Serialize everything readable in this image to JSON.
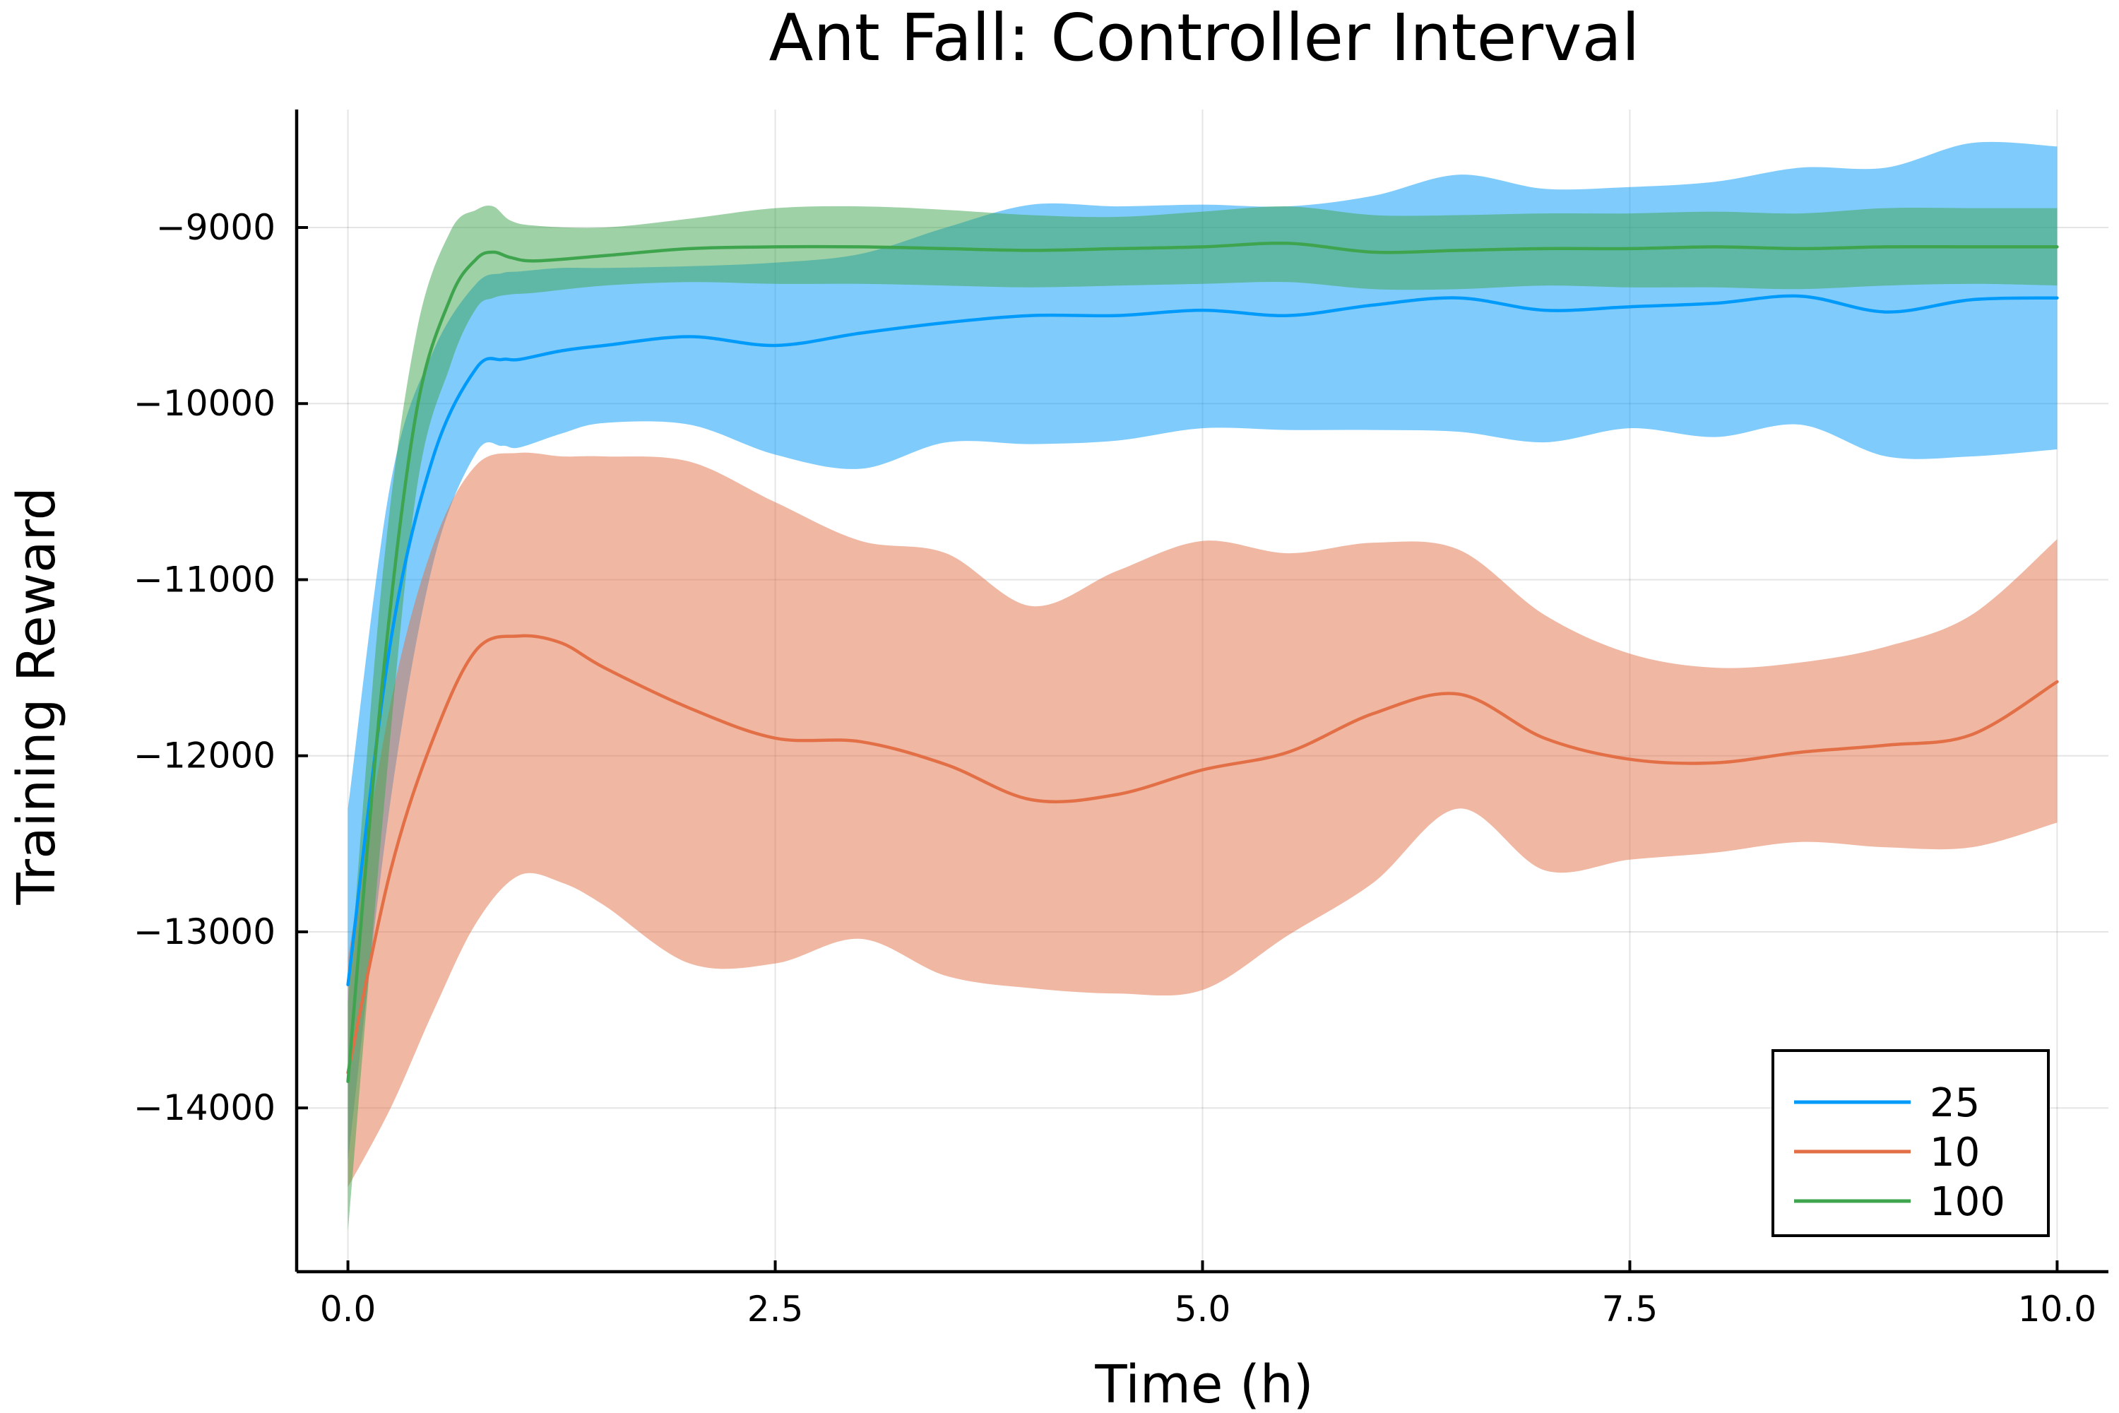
{
  "chart_data": {
    "type": "line",
    "title": "Ant Fall: Controller Interval",
    "xlabel": "Time (h)",
    "ylabel": "Training Reward",
    "xlim": [
      -0.3,
      10.3
    ],
    "ylim": [
      -14930,
      -8330
    ],
    "xticks": [
      0.0,
      2.5,
      5.0,
      7.5,
      10.0
    ],
    "xtick_labels": [
      "0.0",
      "2.5",
      "5.0",
      "7.5",
      "10.0"
    ],
    "yticks": [
      -9000,
      -10000,
      -11000,
      -12000,
      -13000,
      -14000
    ],
    "ytick_labels": [
      "−9000",
      "−10000",
      "−11000",
      "−12000",
      "−13000",
      "−14000"
    ],
    "grid": true,
    "legend_position": "bottom-right",
    "band_opacity": 0.5,
    "series": [
      {
        "name": "25",
        "color": "#009AFA",
        "x": [
          0,
          0.25,
          0.5,
          0.75,
          0.9,
          1.0,
          1.25,
          1.5,
          2.0,
          2.5,
          3.0,
          3.5,
          4.0,
          4.5,
          5.0,
          5.5,
          6.0,
          6.5,
          7.0,
          7.5,
          8.0,
          8.5,
          9.0,
          9.5,
          10.0
        ],
        "mean": [
          -13300,
          -11350,
          -10300,
          -9800,
          -9750,
          -9750,
          -9700,
          -9670,
          -9620,
          -9670,
          -9600,
          -9540,
          -9500,
          -9500,
          -9470,
          -9500,
          -9440,
          -9400,
          -9470,
          -9450,
          -9430,
          -9390,
          -9480,
          -9410,
          -9400
        ],
        "upper": [
          -12300,
          -10450,
          -9700,
          -9320,
          -9260,
          -9250,
          -9230,
          -9230,
          -9220,
          -9200,
          -9150,
          -9000,
          -8870,
          -8880,
          -8870,
          -8880,
          -8820,
          -8700,
          -8780,
          -8770,
          -8740,
          -8660,
          -8660,
          -8520,
          -8540
        ],
        "lower": [
          -14300,
          -12250,
          -10900,
          -10280,
          -10240,
          -10250,
          -10170,
          -10110,
          -10120,
          -10290,
          -10370,
          -10220,
          -10230,
          -10210,
          -10140,
          -10150,
          -10150,
          -10160,
          -10220,
          -10140,
          -10190,
          -10120,
          -10300,
          -10300,
          -10260
        ]
      },
      {
        "name": "10",
        "color": "#E26F46",
        "x": [
          0,
          0.25,
          0.5,
          0.75,
          1.0,
          1.25,
          1.5,
          2.0,
          2.5,
          3.0,
          3.5,
          4.0,
          4.5,
          5.0,
          5.5,
          6.0,
          6.5,
          7.0,
          7.5,
          8.0,
          8.5,
          9.0,
          9.5,
          10.0
        ],
        "mean": [
          -13800,
          -12650,
          -11900,
          -11400,
          -11320,
          -11360,
          -11500,
          -11730,
          -11900,
          -11920,
          -12050,
          -12250,
          -12220,
          -12080,
          -11980,
          -11760,
          -11650,
          -11900,
          -12020,
          -12040,
          -11980,
          -11940,
          -11880,
          -11580
        ],
        "upper": [
          -13150,
          -11700,
          -10800,
          -10350,
          -10280,
          -10300,
          -10300,
          -10330,
          -10560,
          -10780,
          -10850,
          -11150,
          -10950,
          -10780,
          -10850,
          -10790,
          -10830,
          -11200,
          -11420,
          -11500,
          -11470,
          -11380,
          -11200,
          -10770
        ],
        "lower": [
          -14450,
          -14000,
          -13450,
          -12950,
          -12680,
          -12720,
          -12850,
          -13180,
          -13180,
          -13040,
          -13250,
          -13320,
          -13350,
          -13330,
          -13020,
          -12720,
          -12300,
          -12650,
          -12590,
          -12550,
          -12490,
          -12520,
          -12520,
          -12380
        ]
      },
      {
        "name": "100",
        "color": "#3EA44E",
        "x": [
          0,
          0.2,
          0.4,
          0.6,
          0.75,
          0.85,
          0.95,
          1.1,
          1.5,
          2.0,
          2.5,
          3.0,
          3.5,
          4.0,
          4.5,
          5.0,
          5.5,
          6.0,
          6.5,
          7.0,
          7.5,
          8.0,
          8.5,
          9.0,
          9.5,
          10.0
        ],
        "mean": [
          -13850,
          -11600,
          -10050,
          -9400,
          -9180,
          -9140,
          -9170,
          -9190,
          -9160,
          -9120,
          -9110,
          -9110,
          -9120,
          -9130,
          -9120,
          -9110,
          -9090,
          -9140,
          -9130,
          -9120,
          -9120,
          -9110,
          -9120,
          -9110,
          -9110,
          -9110
        ],
        "upper": [
          -13400,
          -11000,
          -9600,
          -9020,
          -8900,
          -8880,
          -8960,
          -8990,
          -9000,
          -8950,
          -8890,
          -8880,
          -8900,
          -8930,
          -8940,
          -8910,
          -8880,
          -8930,
          -8930,
          -8920,
          -8920,
          -8910,
          -8920,
          -8890,
          -8890,
          -8890
        ],
        "lower": [
          -14700,
          -12400,
          -10500,
          -9780,
          -9460,
          -9400,
          -9380,
          -9370,
          -9330,
          -9310,
          -9320,
          -9320,
          -9330,
          -9340,
          -9330,
          -9320,
          -9310,
          -9350,
          -9350,
          -9330,
          -9340,
          -9340,
          -9350,
          -9330,
          -9320,
          -9330
        ]
      }
    ]
  }
}
